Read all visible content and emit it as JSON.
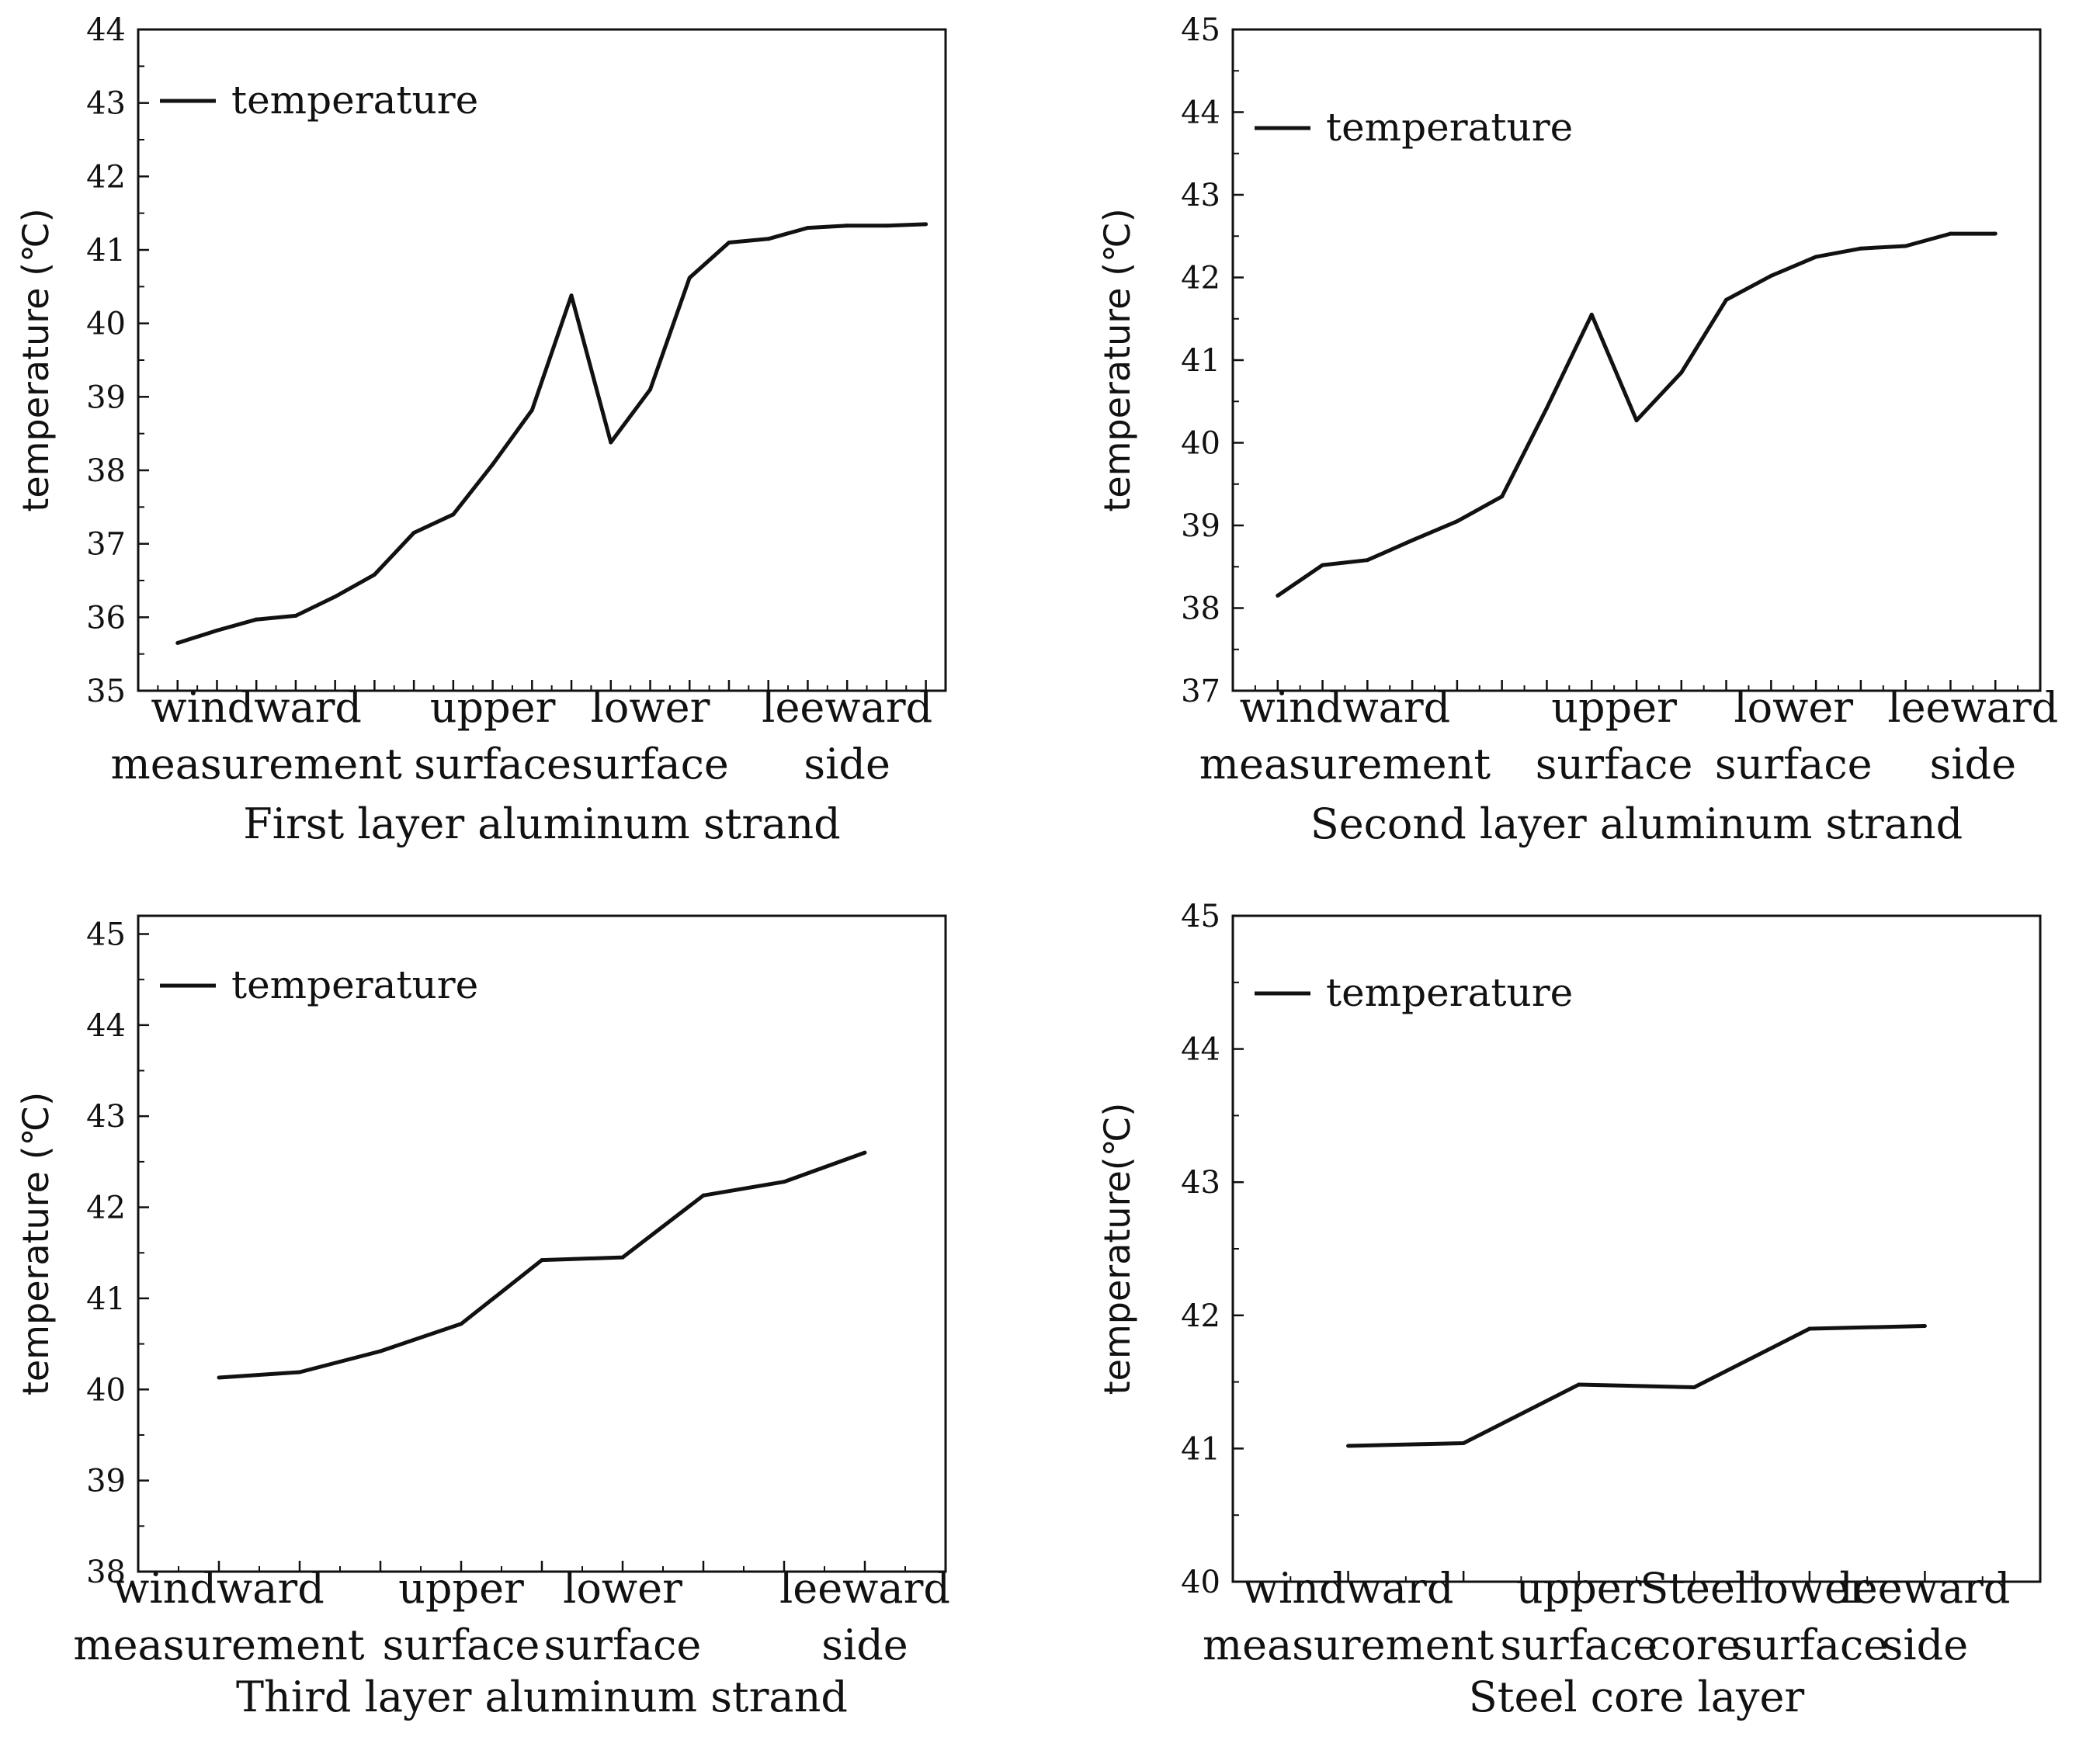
{
  "chart_data": [
    {
      "type": "line",
      "title": "First layer aluminum strand",
      "xlabel": "First layer aluminum strand",
      "ylabel": "temperature (℃)",
      "legend": "temperature",
      "legend_position": "top-left",
      "ylim": [
        35,
        44
      ],
      "yticks": [
        "35",
        "36",
        "37",
        "38",
        "39",
        "40",
        "41",
        "42",
        "43",
        "44"
      ],
      "xlim": [
        0,
        20.5
      ],
      "categories": [
        {
          "label": [
            "windward",
            "measurement"
          ],
          "x": 3
        },
        {
          "label": [
            "upper",
            "surface"
          ],
          "x": 9
        },
        {
          "label": [
            "lower",
            "surface"
          ],
          "x": 13
        },
        {
          "label": [
            "leeward",
            "side"
          ],
          "x": 18
        }
      ],
      "x": [
        1,
        2,
        3,
        4,
        5,
        6,
        7,
        8,
        9,
        10,
        11,
        12,
        13,
        14,
        15,
        16,
        17,
        18,
        19,
        20
      ],
      "values": [
        35.65,
        35.82,
        35.97,
        36.02,
        36.28,
        36.58,
        37.15,
        37.4,
        38.08,
        38.82,
        40.38,
        38.38,
        39.1,
        40.62,
        41.1,
        41.15,
        41.3,
        41.33,
        41.33,
        41.35
      ]
    },
    {
      "type": "line",
      "title": "Second layer aluminum strand",
      "xlabel": "Second layer aluminum strand",
      "ylabel": "temperature (℃)",
      "legend": "temperature",
      "legend_position": "top-left",
      "ylim": [
        37,
        45
      ],
      "yticks": [
        "37",
        "38",
        "39",
        "40",
        "41",
        "42",
        "43",
        "44",
        "45"
      ],
      "xlim": [
        0,
        18
      ],
      "categories": [
        {
          "label": [
            "windward",
            "measurement"
          ],
          "x": 2.5
        },
        {
          "label": [
            "upper",
            "surface"
          ],
          "x": 8.5
        },
        {
          "label": [
            "lower",
            "surface"
          ],
          "x": 12.5
        },
        {
          "label": [
            "leeward",
            "side"
          ],
          "x": 16.5
        }
      ],
      "x": [
        1,
        2,
        3,
        4,
        5,
        6,
        7,
        8,
        9,
        10,
        11,
        12,
        13,
        14,
        15,
        16,
        17
      ],
      "values": [
        38.15,
        38.52,
        38.58,
        38.82,
        39.05,
        39.35,
        40.42,
        41.55,
        40.27,
        40.85,
        41.73,
        42.02,
        42.25,
        42.35,
        42.38,
        42.53,
        42.53
      ]
    },
    {
      "type": "line",
      "title": "Third layer aluminum strand",
      "xlabel": "Third layer aluminum strand",
      "ylabel": "temperature (℃)",
      "legend": "temperature",
      "legend_position": "top-left",
      "ylim": [
        38,
        45.2
      ],
      "yticks": [
        "38",
        "39",
        "40",
        "41",
        "42",
        "43",
        "44",
        "45"
      ],
      "xlim": [
        0,
        10
      ],
      "categories": [
        {
          "label": [
            "windward",
            "measurement"
          ],
          "x": 1
        },
        {
          "label": [
            "upper",
            "surface"
          ],
          "x": 4
        },
        {
          "label": [
            "lower",
            "surface"
          ],
          "x": 6
        },
        {
          "label": [
            "leeward",
            "side"
          ],
          "x": 9
        }
      ],
      "x": [
        1,
        2,
        3,
        4,
        5,
        6,
        7,
        8,
        9
      ],
      "values": [
        40.13,
        40.19,
        40.42,
        40.72,
        41.42,
        41.45,
        42.13,
        42.28,
        42.6
      ]
    },
    {
      "type": "line",
      "title": "Steel core layer",
      "xlabel": "Steel core layer",
      "ylabel": "temperature(℃)",
      "legend": "temperature",
      "legend_position": "top-left",
      "ylim": [
        40,
        45
      ],
      "yticks": [
        "40",
        "41",
        "42",
        "43",
        "44",
        "45"
      ],
      "xlim": [
        0,
        7
      ],
      "categories": [
        {
          "label": [
            "windward",
            "measurement"
          ],
          "x": 1
        },
        {
          "label": [
            "upper",
            "surface"
          ],
          "x": 3
        },
        {
          "label": [
            "Steel",
            "core"
          ],
          "x": 4
        },
        {
          "label": [
            "lower",
            "surface"
          ],
          "x": 5
        },
        {
          "label": [
            "leeward",
            "side"
          ],
          "x": 6
        }
      ],
      "x": [
        1,
        2,
        3,
        4,
        5,
        6
      ],
      "values": [
        41.02,
        41.04,
        41.48,
        41.46,
        41.9,
        41.92
      ]
    }
  ]
}
